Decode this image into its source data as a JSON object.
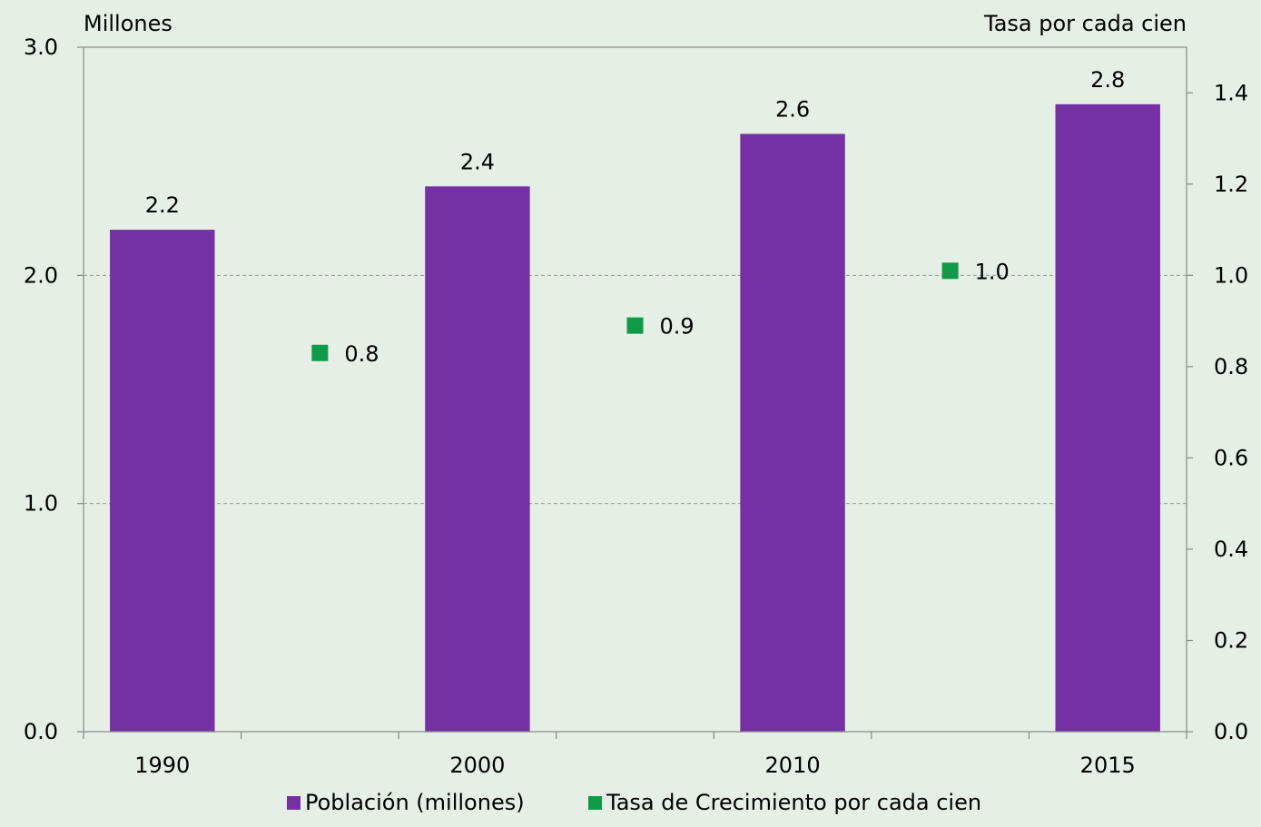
{
  "chart_data": {
    "type": "bar",
    "categories": [
      "1990",
      "2000",
      "2010",
      "2015"
    ],
    "y_left": {
      "label": "Millones",
      "ylim": [
        0,
        3
      ],
      "ticks": [
        "0.0",
        "1.0",
        "2.0",
        "3.0"
      ]
    },
    "y_right": {
      "label": "Tasa por cada cien",
      "ylim": [
        0,
        1.5
      ],
      "ticks": [
        "0.0",
        "0.2",
        "0.4",
        "0.6",
        "0.8",
        "1.0",
        "1.2",
        "1.4"
      ]
    },
    "series": [
      {
        "name": "Población (millones)",
        "type": "bar",
        "axis": "left",
        "color": "#7530a3",
        "values": [
          2.2,
          2.39,
          2.62,
          2.75
        ],
        "labels": [
          "2.2",
          "2.4",
          "2.6",
          "2.8"
        ]
      },
      {
        "name": "Tasa de Crecimiento por cada cien",
        "type": "scatter",
        "axis": "right",
        "color": "#0e9a48",
        "x_between": [
          [
            "1990",
            "2000"
          ],
          [
            "2000",
            "2010"
          ],
          [
            "2010",
            "2015"
          ]
        ],
        "values": [
          0.83,
          0.89,
          1.01
        ],
        "labels": [
          "0.8",
          "0.9",
          "1.0"
        ]
      }
    ],
    "grid": "dashed horizontal at left-axis major ticks",
    "legend_position": "bottom"
  }
}
